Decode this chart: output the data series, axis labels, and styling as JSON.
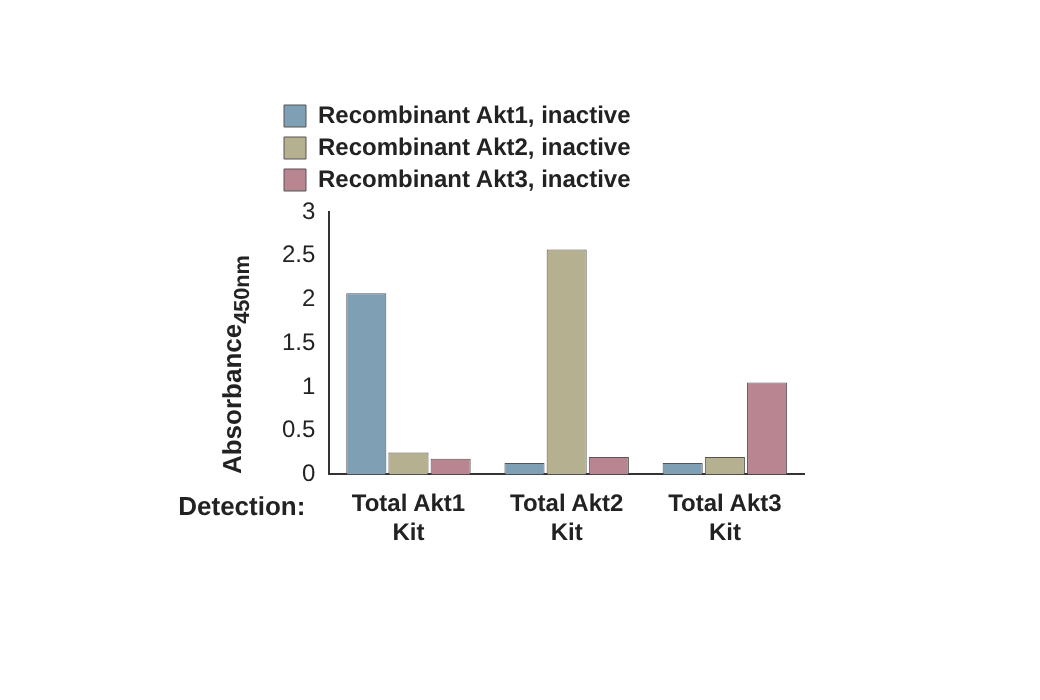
{
  "chart_data": {
    "type": "bar",
    "ylabel": "Absorbance$_{450nm}$",
    "xlabel": "Detection:",
    "categories": [
      "Total Akt1 Kit",
      "Total Akt2 Kit",
      "Total Akt3 Kit"
    ],
    "series": [
      {
        "name": "Recombinant Akt1, inactive",
        "color": "#7f9fb5",
        "values": [
          2.07,
          0.13,
          0.13
        ]
      },
      {
        "name": "Recombinant Akt2, inactive",
        "color": "#b5b08f",
        "values": [
          0.25,
          2.57,
          0.2
        ]
      },
      {
        "name": "Recombinant Akt3, inactive",
        "color": "#b88590",
        "values": [
          0.18,
          0.2,
          1.05
        ]
      }
    ],
    "ylim": [
      0,
      3
    ],
    "yticks": [
      0,
      0.5,
      1,
      1.5,
      2,
      2.5,
      3
    ],
    "grid": false,
    "legend": "top"
  }
}
